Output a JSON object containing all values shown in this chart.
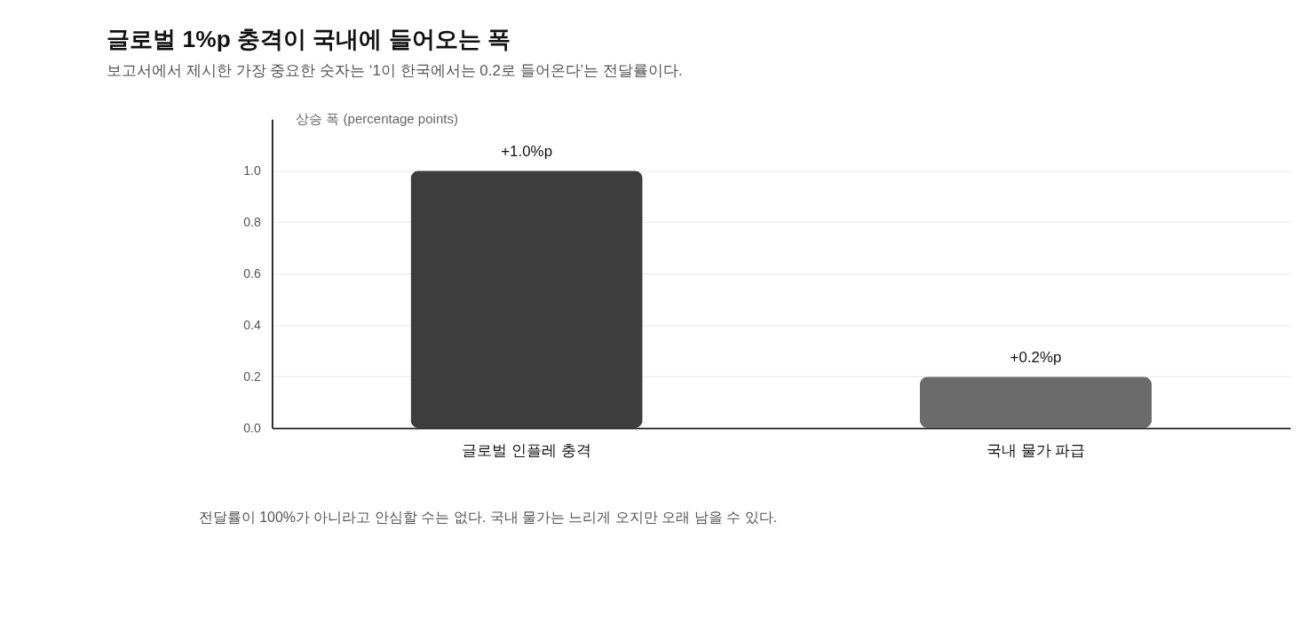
{
  "chart_data": {
    "type": "bar",
    "title": "글로벌 1%p 충격이 국내에 들어오는 폭",
    "subtitle": "보고서에서 제시한 가장 중요한 숫자는 ‘1이 한국에서는 0.2로 들어온다’는 전달률이다.",
    "ylabel": "상승 폭 (percentage points)",
    "categories": [
      "글로벌 인플레 충격",
      "국내 물가 파급"
    ],
    "values": [
      1.0,
      0.2
    ],
    "colors": [
      "#3d3d3d",
      "#6b6b6b"
    ],
    "value_labels": [
      "+1.0%p",
      "+0.2%p"
    ],
    "ylim": [
      0,
      1.2
    ],
    "yticks": [
      {
        "value": 0,
        "label": "0.0"
      },
      {
        "value": 0.2,
        "label": "0.2"
      },
      {
        "value": 0.4,
        "label": "0.4"
      },
      {
        "value": 0.6,
        "label": "0.6"
      },
      {
        "value": 0.8,
        "label": "0.8"
      },
      {
        "value": 1.0,
        "label": "1.0"
      }
    ],
    "grid": "y",
    "annotations": [
      "전달률이 100%가 아니라고 안심할 수는 없다. 국내 물가는 느리게 오지만 오래 남을 수 있다."
    ]
  }
}
